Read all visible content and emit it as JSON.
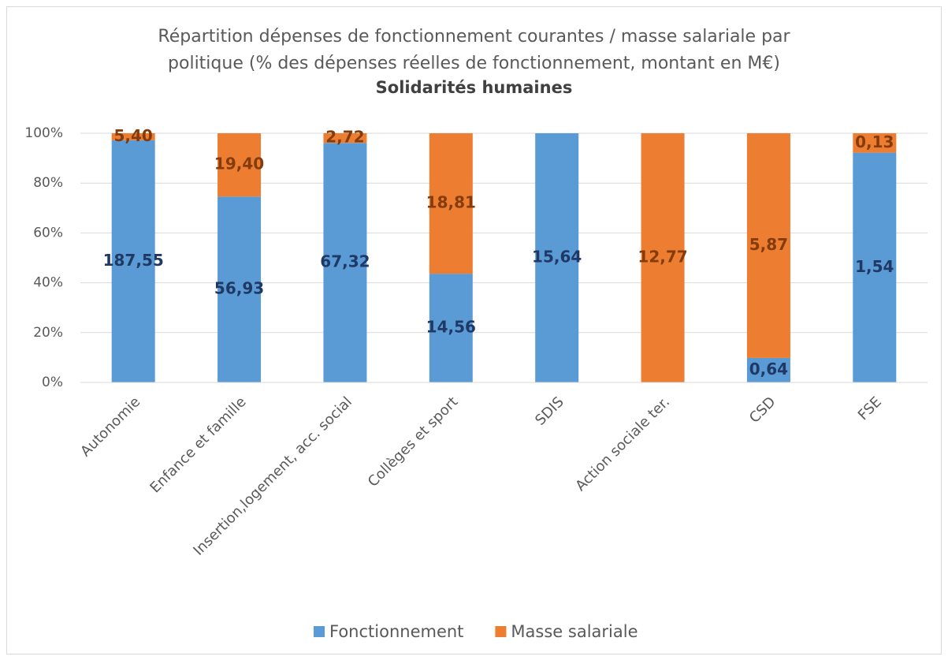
{
  "chart_data": {
    "type": "bar",
    "stacking": "percent",
    "title": "Répartition dépenses de fonctionnement courantes / masse salariale par politique (% des dépenses réelles de fonctionnement, montant en M€)",
    "subtitle": "Solidarités humaines",
    "categories": [
      "Autonomie",
      "Enfance et famille",
      "Insertion,logement, acc. social",
      "Collèges et sport",
      "SDIS",
      "Action sociale ter.",
      "CSD",
      "FSE"
    ],
    "series": [
      {
        "name": "Fonctionnement",
        "color": "#5b9bd5",
        "label_color": "#1f3864",
        "values": [
          187.55,
          56.93,
          67.32,
          14.56,
          15.64,
          null,
          0.64,
          1.54
        ],
        "value_labels": [
          "187,55",
          "56,93",
          "67,32",
          "14,56",
          "15,64",
          null,
          "0,64",
          "1,54"
        ]
      },
      {
        "name": "Masse salariale",
        "color": "#ed7d31",
        "label_color": "#843c0c",
        "values": [
          5.4,
          19.4,
          2.72,
          18.81,
          null,
          12.77,
          5.87,
          0.13
        ],
        "value_labels": [
          "5,40",
          "19,40",
          "2,72",
          "18,81",
          null,
          "12,77",
          "5,87",
          "0,13"
        ]
      }
    ],
    "ylim": [
      0,
      100
    ],
    "yticks": [
      {
        "value": 0,
        "label": "0%"
      },
      {
        "value": 20,
        "label": "20%"
      },
      {
        "value": 40,
        "label": "40%"
      },
      {
        "value": 60,
        "label": "60%"
      },
      {
        "value": 80,
        "label": "80%"
      },
      {
        "value": 100,
        "label": "100%"
      }
    ],
    "grid": true,
    "legend": "bottom"
  }
}
